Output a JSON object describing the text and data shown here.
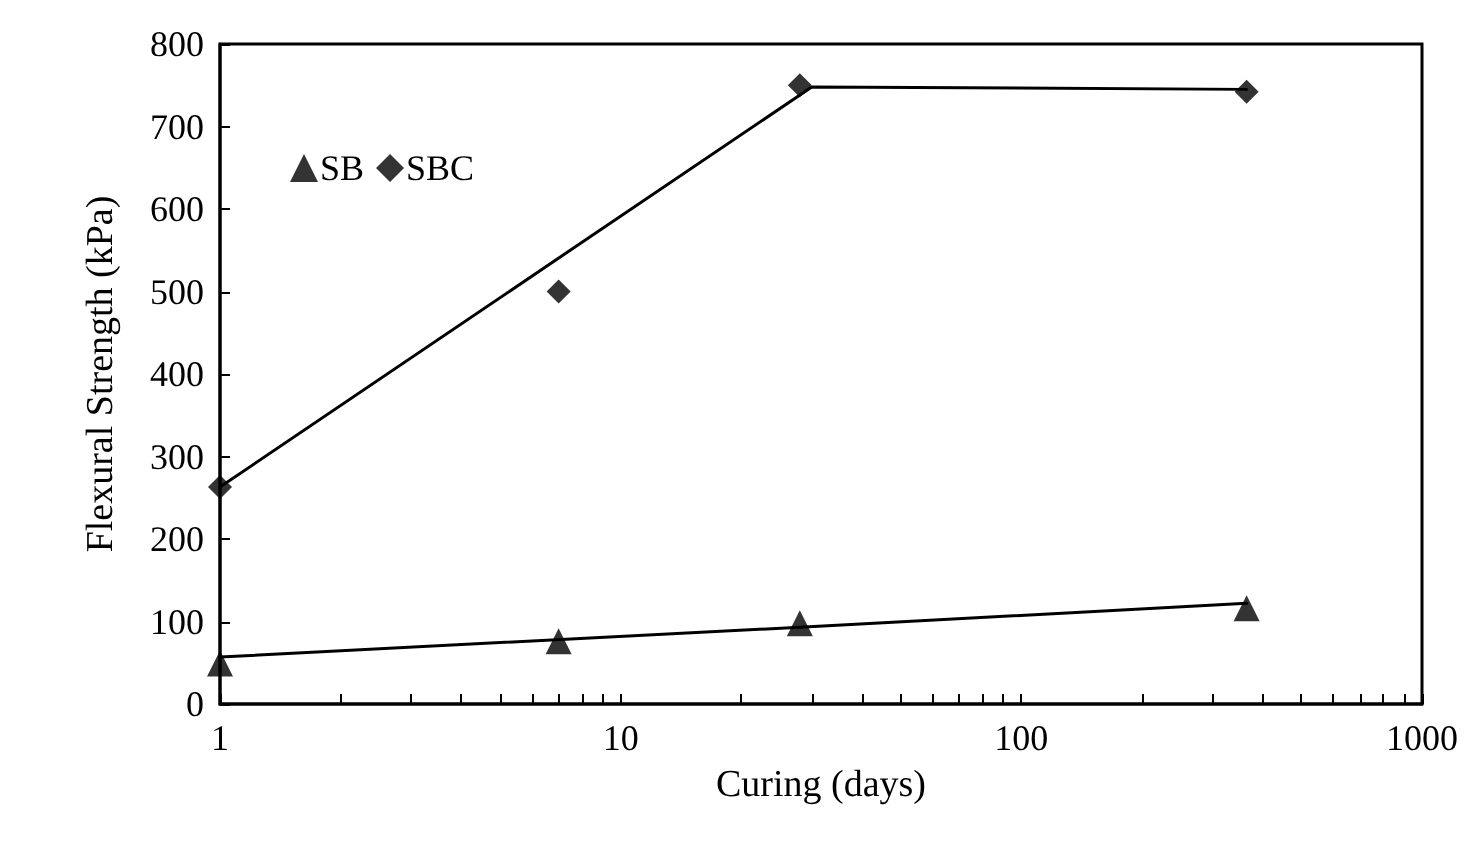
{
  "chart_data": {
    "type": "scatter",
    "xlabel": "Curing (days)",
    "ylabel": "Flexural Strength (kPa)",
    "log": "x",
    "xlim": [
      1,
      1000
    ],
    "ylim": [
      0,
      800
    ],
    "xticks": [
      1,
      {
        "value": 2,
        "label": null
      },
      {
        "value": 3,
        "label": null
      },
      {
        "value": 4,
        "label": null
      },
      {
        "value": 5,
        "label": null
      },
      {
        "value": 6,
        "label": null
      },
      {
        "value": 7,
        "label": null
      },
      {
        "value": 8,
        "label": null
      },
      {
        "value": 9,
        "label": null
      },
      10,
      {
        "value": 20,
        "label": null
      },
      {
        "value": 30,
        "label": null
      },
      {
        "value": 40,
        "label": null
      },
      {
        "value": 50,
        "label": null
      },
      {
        "value": 60,
        "label": null
      },
      {
        "value": 70,
        "label": null
      },
      {
        "value": 80,
        "label": null
      },
      {
        "value": 90,
        "label": null
      },
      100,
      {
        "value": 200,
        "label": null
      },
      {
        "value": 300,
        "label": null
      },
      {
        "value": 400,
        "label": null
      },
      {
        "value": 500,
        "label": null
      },
      {
        "value": 600,
        "label": null
      },
      {
        "value": 700,
        "label": null
      },
      {
        "value": 800,
        "label": null
      },
      {
        "value": 900,
        "label": null
      },
      1000
    ],
    "yticks": [
      0,
      100,
      200,
      300,
      400,
      500,
      600,
      700,
      800
    ],
    "grid": false,
    "legend": "top left",
    "series": [
      {
        "name": "SB",
        "color": "#000000",
        "marker": "triangle",
        "x": [
          1,
          7,
          28,
          365
        ],
        "values": [
          49,
          76,
          98,
          116
        ]
      },
      {
        "name": "SBC",
        "color": "#000000",
        "marker": "diamond",
        "x": [
          1,
          7,
          28,
          365
        ],
        "values": [
          263,
          500,
          750,
          742
        ]
      },
      {
        "type": "line",
        "color": "#000000",
        "marker": "none",
        "line_style": "solid",
        "x": [
          1,
          28,
          365
        ],
        "values": [
          57,
          93,
          122
        ]
      },
      {
        "type": "line",
        "color": "#000000",
        "marker": "none",
        "line_style": "solid",
        "x": [
          1,
          30,
          365
        ],
        "values": [
          263,
          748,
          745
        ]
      }
    ]
  }
}
